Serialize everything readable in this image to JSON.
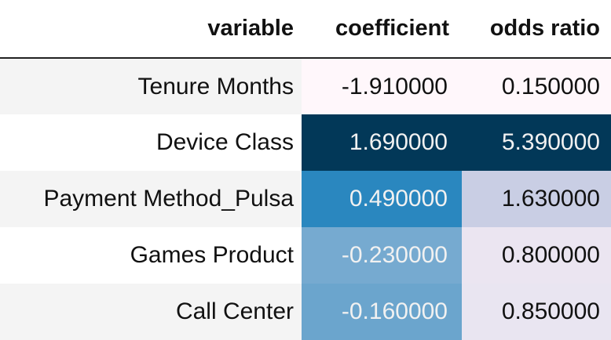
{
  "table": {
    "headers": {
      "variable": "variable",
      "coefficient": "coefficient",
      "odds_ratio": "odds ratio"
    },
    "rows": [
      {
        "variable": "Tenure Months",
        "coefficient": "-1.910000",
        "odds_ratio": "0.150000",
        "coef_bg": "#fff7fb",
        "coef_fg": "#111111",
        "odds_bg": "#fff7fb",
        "odds_fg": "#111111"
      },
      {
        "variable": "Device Class",
        "coefficient": "1.690000",
        "odds_ratio": "5.390000",
        "coef_bg": "#023858",
        "coef_fg": "#f1f1f1",
        "odds_bg": "#023858",
        "odds_fg": "#f1f1f1"
      },
      {
        "variable": "Payment Method_Pulsa",
        "coefficient": "0.490000",
        "odds_ratio": "1.630000",
        "coef_bg": "#2a87bf",
        "coef_fg": "#f1f1f1",
        "odds_bg": "#c9cee4",
        "odds_fg": "#111111"
      },
      {
        "variable": "Games Product",
        "coefficient": "-0.230000",
        "odds_ratio": "0.800000",
        "coef_bg": "#76aad0",
        "coef_fg": "#f1f1f1",
        "odds_bg": "#ebe5f1",
        "odds_fg": "#111111"
      },
      {
        "variable": "Call Center",
        "coefficient": "-0.160000",
        "odds_ratio": "0.850000",
        "coef_bg": "#6ba5cd",
        "coef_fg": "#f1f1f1",
        "odds_bg": "#e9e5f1",
        "odds_fg": "#111111"
      }
    ]
  }
}
